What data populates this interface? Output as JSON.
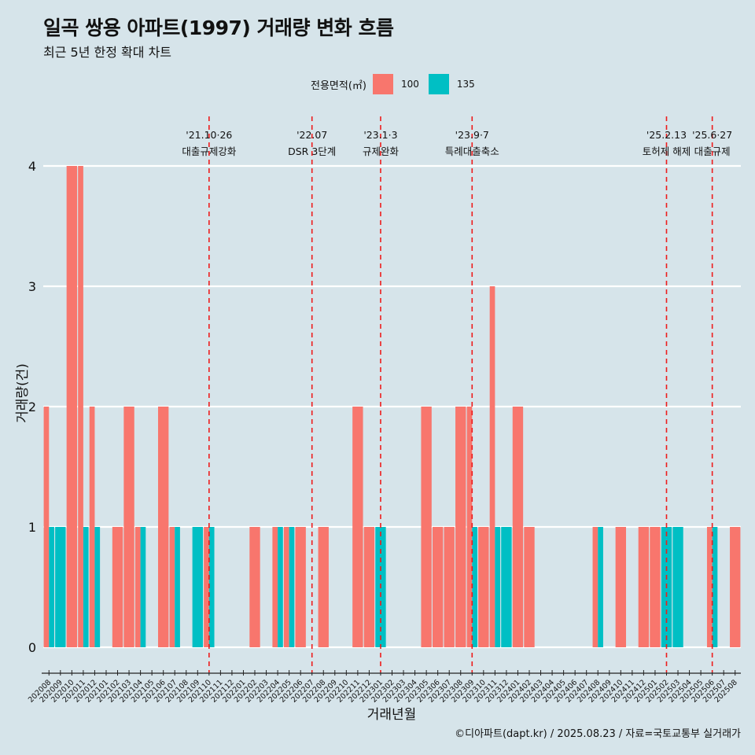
{
  "title": "일곡 쌍용 아파트(1997) 거래량 변화 흐름",
  "subtitle": "최근 5년 한정 확대 차트",
  "legend": {
    "title": "전용면적(㎡)",
    "items": [
      {
        "label": "100",
        "color": "#f8766d"
      },
      {
        "label": "135",
        "color": "#00bfc4"
      }
    ]
  },
  "caption": "©디아파트(dapt.kr) / 2025.08.23 / 자료=국토교통부 실거래가",
  "chart_data": {
    "type": "bar",
    "xlabel": "거래년월",
    "ylabel": "거래량(건)",
    "ylim": [
      0,
      4
    ],
    "yticks": [
      0,
      1,
      2,
      3,
      4
    ],
    "categories": [
      "202008",
      "202009",
      "202010",
      "202011",
      "202012",
      "202101",
      "202102",
      "202103",
      "202104",
      "202105",
      "202106",
      "202107",
      "202108",
      "202109",
      "202110",
      "202111",
      "202112",
      "202201",
      "202202",
      "202203",
      "202204",
      "202205",
      "202206",
      "202207",
      "202208",
      "202209",
      "202210",
      "202211",
      "202212",
      "202301",
      "202302",
      "202303",
      "202304",
      "202305",
      "202306",
      "202307",
      "202308",
      "202309",
      "202310",
      "202311",
      "202312",
      "202401",
      "202402",
      "202403",
      "202404",
      "202405",
      "202406",
      "202407",
      "202408",
      "202409",
      "202410",
      "202411",
      "202412",
      "202501",
      "202502",
      "202503",
      "202504",
      "202505",
      "202506",
      "202507",
      "202508"
    ],
    "series": [
      {
        "name": "100",
        "color": "#f8766d",
        "values": [
          2,
          0,
          4,
          4,
          2,
          0,
          1,
          2,
          1,
          0,
          2,
          1,
          0,
          0,
          1,
          0,
          0,
          0,
          1,
          0,
          1,
          1,
          1,
          0,
          1,
          0,
          0,
          2,
          1,
          0,
          0,
          0,
          0,
          2,
          1,
          1,
          2,
          2,
          1,
          3,
          0,
          2,
          1,
          0,
          0,
          0,
          0,
          0,
          1,
          0,
          1,
          0,
          1,
          1,
          0,
          0,
          0,
          0,
          1,
          0,
          1
        ]
      },
      {
        "name": "135",
        "color": "#00bfc4",
        "values": [
          1,
          1,
          0,
          1,
          1,
          0,
          0,
          0,
          1,
          0,
          0,
          1,
          0,
          1,
          1,
          0,
          0,
          0,
          0,
          0,
          1,
          1,
          0,
          0,
          0,
          0,
          0,
          0,
          0,
          1,
          0,
          0,
          0,
          0,
          0,
          0,
          0,
          1,
          0,
          1,
          1,
          0,
          0,
          0,
          0,
          0,
          0,
          0,
          1,
          0,
          0,
          0,
          0,
          0,
          1,
          1,
          0,
          0,
          1,
          0,
          0
        ]
      }
    ],
    "events": [
      {
        "category": "202110",
        "date": "'21.10·26",
        "label": "대출규제강화"
      },
      {
        "category": "202207",
        "date": "'22.07",
        "label": "DSR 3단계"
      },
      {
        "category": "202301",
        "date": "'23.1·3",
        "label": "규제완화"
      },
      {
        "category": "202309",
        "date": "'23.9·7",
        "label": "특례대출축소"
      },
      {
        "category": "202502",
        "date": "'25.2.13",
        "label": "토허제 해제"
      },
      {
        "category": "202506",
        "date": "'25.6·27",
        "label": "대출규제"
      }
    ]
  }
}
